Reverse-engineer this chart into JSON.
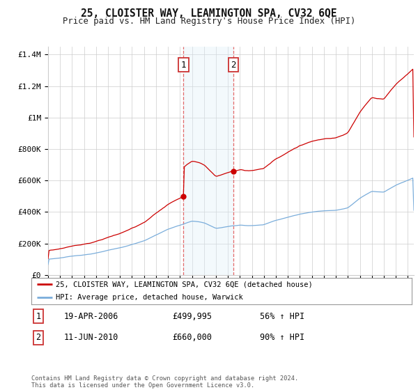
{
  "title": "25, CLOISTER WAY, LEAMINGTON SPA, CV32 6QE",
  "subtitle": "Price paid vs. HM Land Registry's House Price Index (HPI)",
  "legend_label_red": "25, CLOISTER WAY, LEAMINGTON SPA, CV32 6QE (detached house)",
  "legend_label_blue": "HPI: Average price, detached house, Warwick",
  "transaction1_date": "19-APR-2006",
  "transaction1_price": "£499,995",
  "transaction1_hpi": "56% ↑ HPI",
  "transaction2_date": "11-JUN-2010",
  "transaction2_price": "£660,000",
  "transaction2_hpi": "90% ↑ HPI",
  "footer": "Contains HM Land Registry data © Crown copyright and database right 2024.\nThis data is licensed under the Open Government Licence v3.0.",
  "ylim": [
    0,
    1450000
  ],
  "yticks": [
    0,
    200000,
    400000,
    600000,
    800000,
    1000000,
    1200000,
    1400000
  ],
  "ytick_labels": [
    "£0",
    "£200K",
    "£400K",
    "£600K",
    "£800K",
    "£1M",
    "£1.2M",
    "£1.4M"
  ],
  "xmin": 1995,
  "xmax": 2025.5,
  "sale1_x": 2006.29,
  "sale1_y": 499995,
  "sale2_x": 2010.44,
  "sale2_y": 660000,
  "red_color": "#cc0000",
  "blue_color": "#7aaddb",
  "shade_color": "#ddeef8",
  "grid_color": "#cccccc",
  "background_color": "#ffffff",
  "box_color": "#cc3333"
}
